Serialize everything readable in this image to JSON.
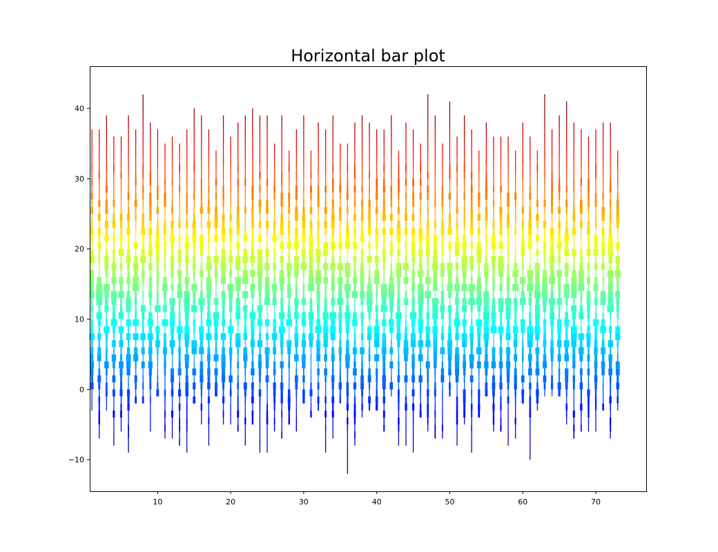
{
  "chart_data": {
    "type": "bar",
    "title": "Horizontal bar plot",
    "xlabel": "",
    "ylabel": "",
    "xlim": [
      0.7,
      76.9
    ],
    "ylim": [
      -14.5,
      46
    ],
    "x_ticks": [
      10,
      20,
      30,
      40,
      50,
      60,
      70
    ],
    "y_ticks": [
      -10,
      0,
      10,
      20,
      30,
      40
    ],
    "grid": false,
    "legend": "none",
    "colormap": "jet",
    "color_value_range": [
      -10,
      40
    ],
    "segment_height": 1.0,
    "x_range": [
      1,
      73
    ],
    "max_bar_half_width": 0.45,
    "seed": 7
  }
}
